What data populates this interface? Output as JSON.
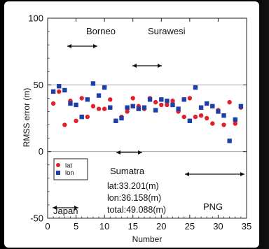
{
  "chart_data": {
    "type": "scatter",
    "xlabel": "Number",
    "ylabel": "RMSS error (m)",
    "xlim": [
      0,
      35
    ],
    "ylim": [
      -50,
      100
    ],
    "x_ticks": [
      "0",
      "5",
      "10",
      "15",
      "20",
      "25",
      "30",
      "35"
    ],
    "y_ticks": [
      "100",
      "50",
      "0",
      "-50"
    ],
    "grid": true,
    "legend_position": "left",
    "series": [
      {
        "name": "lat",
        "color": "#e0202a",
        "marker": "circle",
        "x": [
          1,
          2,
          3,
          4,
          5,
          6,
          7,
          8,
          9,
          10,
          11,
          12,
          13,
          14,
          15,
          16,
          17,
          18,
          19,
          20,
          21,
          22,
          23,
          24,
          25,
          26,
          27,
          28,
          29,
          30,
          31,
          32,
          33,
          34
        ],
        "y": [
          36,
          45,
          20,
          38,
          23,
          40,
          26,
          34,
          32,
          32,
          39,
          23,
          26,
          30,
          40,
          34,
          32,
          40,
          37,
          35,
          35,
          38,
          30,
          26,
          40,
          26,
          27,
          25,
          21,
          31,
          20,
          37,
          21,
          33
        ]
      },
      {
        "name": "lon",
        "color": "#1f3fa8",
        "marker": "square",
        "x": [
          1,
          2,
          3,
          4,
          5,
          6,
          7,
          8,
          9,
          10,
          11,
          12,
          13,
          14,
          15,
          16,
          17,
          18,
          19,
          20,
          21,
          22,
          23,
          24,
          25,
          26,
          27,
          28,
          29,
          30,
          31,
          32,
          33,
          34
        ],
        "y": [
          45,
          49,
          46,
          36,
          35,
          26,
          39,
          51,
          42,
          48,
          33,
          23,
          25,
          33,
          34,
          32,
          33,
          39,
          31,
          39,
          38,
          35,
          32,
          39,
          23,
          48,
          33,
          36,
          34,
          30,
          27,
          8,
          24,
          34
        ]
      }
    ],
    "annotations": {
      "regions": [
        "Borneo",
        "Surawesi",
        "Sumatra",
        "Japan",
        "PNG"
      ],
      "stats": [
        "lat:33.201(m)",
        "lon:36.158(m)",
        "total:49.088(m)"
      ]
    }
  }
}
